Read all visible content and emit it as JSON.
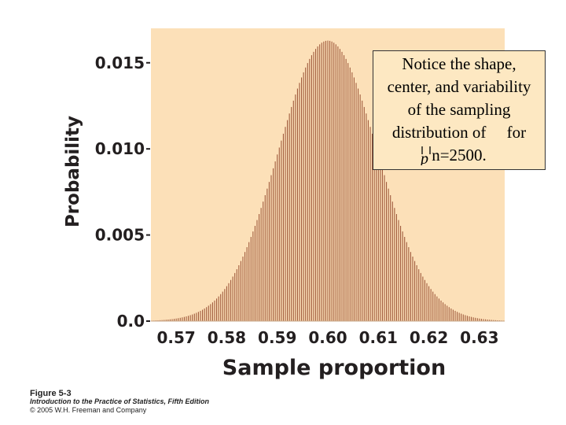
{
  "chart_data": {
    "type": "bar",
    "title": "",
    "xlabel": "Sample proportion",
    "ylabel": "Probability",
    "xlim": [
      0.565,
      0.635
    ],
    "ylim": [
      0,
      0.017
    ],
    "xticks": [
      "0.57",
      "0.58",
      "0.59",
      "0.60",
      "0.61",
      "0.62",
      "0.63"
    ],
    "yticks": [
      "0.0",
      "0.005",
      "0.010",
      "0.015"
    ],
    "distribution": {
      "n": 2500,
      "p": 0.6,
      "mean": 0.6,
      "sd": 0.0098,
      "peak_probability": 0.0163
    },
    "bar_color": "#a05a3c",
    "background_color": "#fce0b8",
    "grid": false
  },
  "annotation": {
    "lines": [
      "Notice the shape,",
      "center, and variability",
      "of the sampling",
      "distribution of     for",
      "n=2500."
    ],
    "symbol": "p-hat"
  },
  "caption": {
    "figure": "Figure 5-3",
    "book": "Introduction to the Practice of Statistics, Fifth Edition",
    "copyright": "© 2005 W.H. Freeman and Company"
  }
}
